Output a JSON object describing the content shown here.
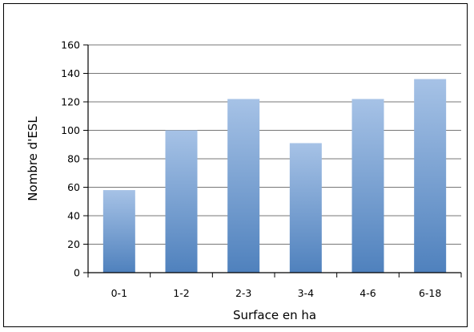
{
  "chart_data": {
    "type": "bar",
    "categories": [
      "0-1",
      "1-2",
      "2-3",
      "3-4",
      "4-6",
      "6-18"
    ],
    "values": [
      58,
      100,
      122,
      91,
      122,
      136
    ],
    "title": "",
    "xlabel": "Surface en ha",
    "ylabel": "Nombre d'ESL",
    "ylim": [
      0,
      160
    ],
    "yticks": [
      0,
      20,
      40,
      60,
      80,
      100,
      120,
      140,
      160
    ],
    "grid": true,
    "legend": "none",
    "colors": {
      "bar_top": "#a6c2e6",
      "bar_bottom": "#4f81bd",
      "grid": "#777777",
      "axis": "#000000"
    }
  }
}
